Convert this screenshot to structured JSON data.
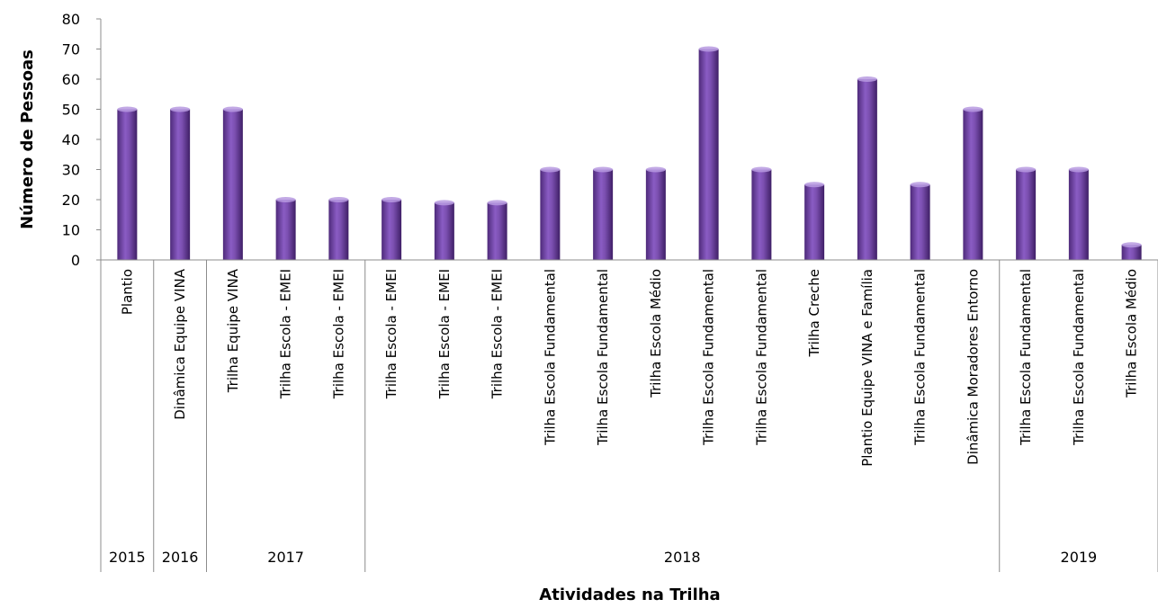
{
  "chart_data": {
    "type": "bar",
    "title": "",
    "xlabel": "Atividades na Trilha",
    "ylabel": "Número de Pessoas",
    "ylim": [
      0,
      80
    ],
    "yticks": [
      0,
      10,
      20,
      30,
      40,
      50,
      60,
      70,
      80
    ],
    "grid": false,
    "legend": "none",
    "bar_color": "#7b4fb0",
    "categories": [
      "Plantio",
      "Dinâmica Equipe VINA",
      "Trilha Equipe VINA",
      "Trilha Escola - EMEI",
      "Trilha Escola - EMEI",
      "Trilha Escola - EMEI",
      "Trilha Escola - EMEI",
      "Trilha Escola - EMEI",
      "Trilha Escola Fundamental",
      "Trilha Escola Fundamental",
      "Trilha Escola Médio",
      "Trilha Escola Fundamental",
      "Trilha Escola Fundamental",
      "Trilha Creche",
      "Plantio Equipe VINA e Família",
      "Trilha Escola Fundamental",
      "Dinâmica Moradores Entorno",
      "Trilha Escola Fundamental",
      "Trilha Escola Fundamental",
      "Trilha Escola Médio"
    ],
    "values": [
      50,
      50,
      50,
      20,
      20,
      20,
      19,
      19,
      30,
      30,
      30,
      70,
      30,
      25,
      60,
      25,
      50,
      30,
      30,
      5
    ],
    "groups": [
      {
        "label": "2015",
        "start": 0,
        "end": 0
      },
      {
        "label": "2016",
        "start": 1,
        "end": 1
      },
      {
        "label": "2017",
        "start": 2,
        "end": 4
      },
      {
        "label": "2018",
        "start": 5,
        "end": 16
      },
      {
        "label": "2019",
        "start": 17,
        "end": 19
      }
    ]
  }
}
